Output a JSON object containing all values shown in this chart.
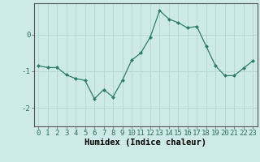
{
  "x": [
    0,
    1,
    2,
    3,
    4,
    5,
    6,
    7,
    8,
    9,
    10,
    11,
    12,
    13,
    14,
    15,
    16,
    17,
    18,
    19,
    20,
    21,
    22,
    23
  ],
  "y": [
    -0.85,
    -0.9,
    -0.9,
    -1.1,
    -1.2,
    -1.25,
    -1.75,
    -1.5,
    -1.7,
    -1.25,
    -0.7,
    -0.5,
    -0.07,
    0.65,
    0.42,
    0.32,
    0.18,
    0.22,
    -0.32,
    -0.85,
    -1.12,
    -1.12,
    -0.92,
    -0.72
  ],
  "line_color": "#2e7d6e",
  "marker": "D",
  "marker_size": 2.0,
  "background_color": "#ceeae6",
  "grid_color": "#b8d8d4",
  "xlabel": "Humidex (Indice chaleur)",
  "xlabel_fontsize": 7.5,
  "tick_fontsize": 6.5,
  "xlim": [
    -0.5,
    23.5
  ],
  "ylim": [
    -2.5,
    0.85
  ],
  "yticks": [
    -2,
    -1,
    0
  ],
  "xticks": [
    0,
    1,
    2,
    3,
    4,
    5,
    6,
    7,
    8,
    9,
    10,
    11,
    12,
    13,
    14,
    15,
    16,
    17,
    18,
    19,
    20,
    21,
    22,
    23
  ]
}
